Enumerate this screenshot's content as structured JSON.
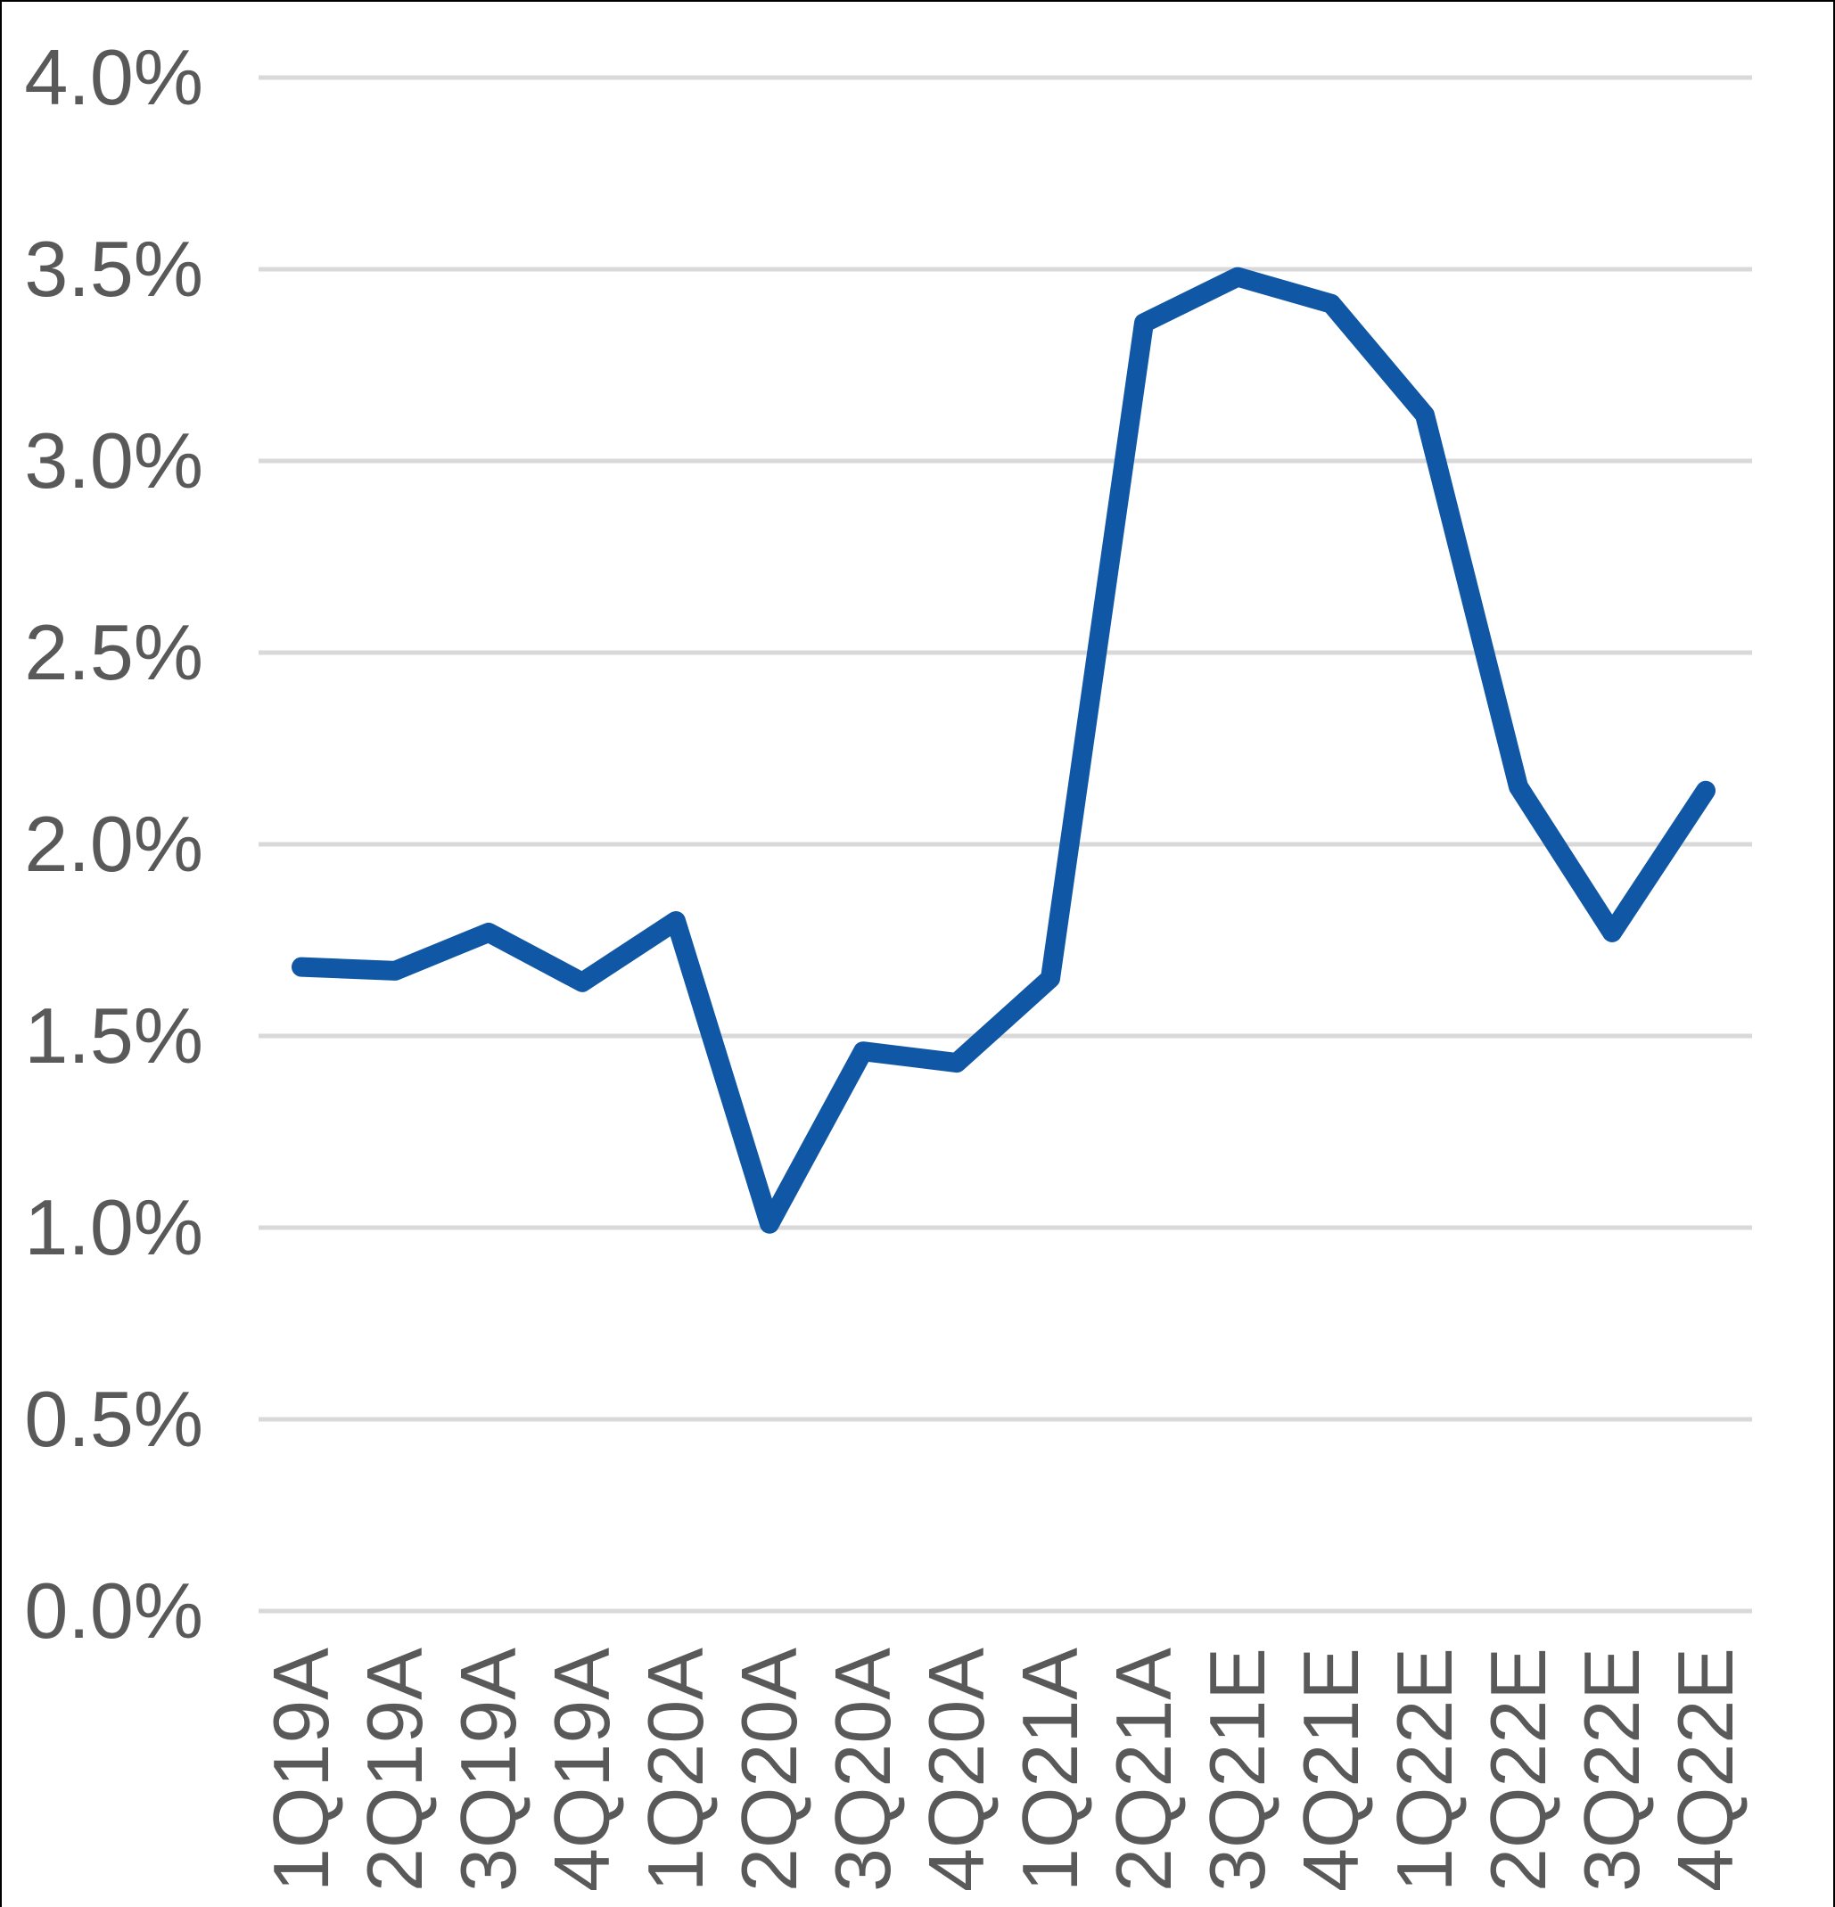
{
  "chart_data": {
    "type": "line",
    "title": "",
    "categories": [
      "1Q19A",
      "2Q19A",
      "3Q19A",
      "4Q19A",
      "1Q20A",
      "2Q20A",
      "3Q20A",
      "4Q20A",
      "1Q21A",
      "2Q21A",
      "3Q21E",
      "4Q21E",
      "1Q22E",
      "2Q22E",
      "3Q22E",
      "4Q22E"
    ],
    "series": [
      {
        "name": "quarterly-rate",
        "values": [
          1.68,
          1.67,
          1.77,
          1.64,
          1.8,
          1.01,
          1.46,
          1.43,
          1.65,
          3.36,
          3.48,
          3.41,
          3.12,
          2.15,
          1.77,
          2.14
        ]
      }
    ],
    "xlabel": "",
    "ylabel": "",
    "ylim": [
      0.0,
      4.0
    ],
    "ytick_values": [
      4.0,
      3.5,
      3.0,
      2.5,
      2.0,
      1.5,
      1.0,
      0.5,
      0.0
    ],
    "ytick_labels": [
      "4.0%",
      "3.5%",
      "3.0%",
      "2.5%",
      "2.0%",
      "1.5%",
      "1.0%",
      "0.5%",
      "0.0%"
    ],
    "grid": true,
    "legend": false
  },
  "colors": {
    "line": "#1057A5",
    "gridline": "#D9D9D9",
    "axis_text": "#595959",
    "chart_border": "#000000",
    "background": "#FFFFFF"
  }
}
